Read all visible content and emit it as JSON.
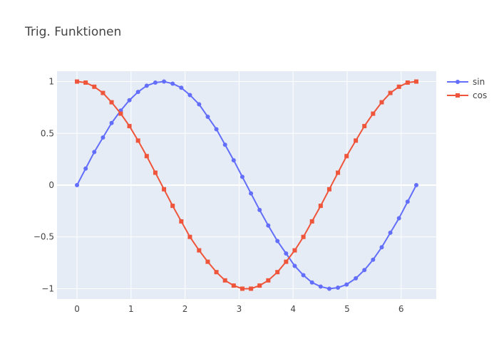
{
  "chart_data": {
    "type": "line",
    "title": "Trig. Funktionen",
    "xlabel": "",
    "ylabel": "",
    "xlim": [
      -0.37,
      6.65
    ],
    "ylim": [
      -1.1,
      1.1
    ],
    "x_ticks": [
      0,
      1,
      2,
      3,
      4,
      5,
      6
    ],
    "y_ticks": [
      -1,
      -0.5,
      0,
      0.5,
      1
    ],
    "y_tick_labels": [
      "−1",
      "−0.5",
      "0",
      "0.5",
      "1"
    ],
    "grid": true,
    "legend_position": "top-right",
    "x": [
      0,
      0.16,
      0.32,
      0.48,
      0.64,
      0.81,
      0.97,
      1.13,
      1.29,
      1.45,
      1.61,
      1.77,
      1.93,
      2.09,
      2.26,
      2.42,
      2.58,
      2.74,
      2.9,
      3.06,
      3.22,
      3.38,
      3.54,
      3.71,
      3.87,
      4.03,
      4.19,
      4.35,
      4.51,
      4.67,
      4.83,
      4.99,
      5.16,
      5.32,
      5.48,
      5.64,
      5.8,
      5.96,
      6.12,
      6.28
    ],
    "series": [
      {
        "name": "sin",
        "color": "#636efa",
        "marker": "circle",
        "values": [
          0,
          0.16,
          0.32,
          0.46,
          0.6,
          0.72,
          0.82,
          0.9,
          0.96,
          0.99,
          1.0,
          0.98,
          0.94,
          0.87,
          0.78,
          0.66,
          0.54,
          0.39,
          0.24,
          0.08,
          -0.08,
          -0.24,
          -0.39,
          -0.54,
          -0.66,
          -0.78,
          -0.87,
          -0.94,
          -0.98,
          -1.0,
          -0.99,
          -0.96,
          -0.9,
          -0.82,
          -0.72,
          -0.6,
          -0.46,
          -0.32,
          -0.16,
          0
        ]
      },
      {
        "name": "cos",
        "color": "#ef553b",
        "marker": "square",
        "values": [
          1.0,
          0.99,
          0.95,
          0.89,
          0.8,
          0.69,
          0.57,
          0.43,
          0.28,
          0.12,
          -0.04,
          -0.2,
          -0.35,
          -0.5,
          -0.63,
          -0.74,
          -0.84,
          -0.92,
          -0.97,
          -1.0,
          -1.0,
          -0.97,
          -0.92,
          -0.84,
          -0.74,
          -0.63,
          -0.5,
          -0.35,
          -0.2,
          -0.04,
          0.12,
          0.28,
          0.43,
          0.57,
          0.69,
          0.8,
          0.89,
          0.95,
          0.99,
          1.0
        ]
      }
    ]
  }
}
